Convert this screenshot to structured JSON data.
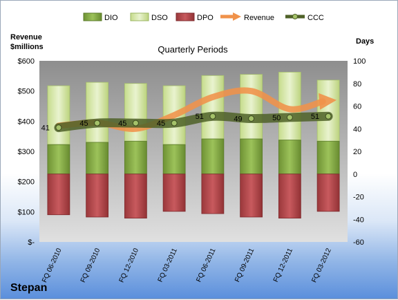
{
  "chart_data": {
    "type": "bar",
    "title": "Quarterly Periods",
    "company": "Stepan",
    "y_left_label": [
      "Revenue",
      "$millions"
    ],
    "y_right_label": "Days",
    "y_left_ticks": [
      "$-",
      "$100",
      "$200",
      "$300",
      "$400",
      "$500",
      "$600"
    ],
    "y_left_range": [
      0,
      600
    ],
    "y_right_range": [
      -60,
      100
    ],
    "y_right_ticks": [
      -60,
      -40,
      -20,
      0,
      20,
      40,
      60,
      80,
      100
    ],
    "categories": [
      "FQ 06-2010",
      "FQ 09-2010",
      "FQ 12-2010",
      "FQ 03-2011",
      "FQ 06-2011",
      "FQ 09-2011",
      "FQ 12-2011",
      "FQ 03-2012"
    ],
    "legend": [
      "DIO",
      "DSO",
      "DPO",
      "Revenue",
      "CCC"
    ],
    "legend_position": "top",
    "series": [
      {
        "name": "DIO",
        "axis": "right",
        "values": [
          26,
          28,
          29,
          26,
          31,
          31,
          30,
          29
        ]
      },
      {
        "name": "DSO",
        "axis": "right",
        "values": [
          52,
          53,
          51,
          52,
          56,
          57,
          60,
          54
        ]
      },
      {
        "name": "DPO",
        "axis": "right",
        "values": [
          -36,
          -38,
          -39,
          -33,
          -35,
          -38,
          -39,
          -33
        ]
      },
      {
        "name": "Revenue",
        "axis": "left",
        "values": [
          385,
          395,
          375,
          420,
          480,
          500,
          440,
          470
        ]
      },
      {
        "name": "CCC",
        "axis": "right",
        "values": [
          41,
          45,
          45,
          45,
          51,
          49,
          50,
          51
        ]
      }
    ],
    "ccc_labels": [
      "41",
      "45",
      "45",
      "45",
      "51",
      "49",
      "50",
      "51"
    ],
    "colors": {
      "DIO": "#8db04a",
      "DSO": "#d6e8a8",
      "DPO": "#b5474b",
      "Revenue": "#f0924a",
      "CCC": "#4f6228"
    },
    "grid": false
  }
}
